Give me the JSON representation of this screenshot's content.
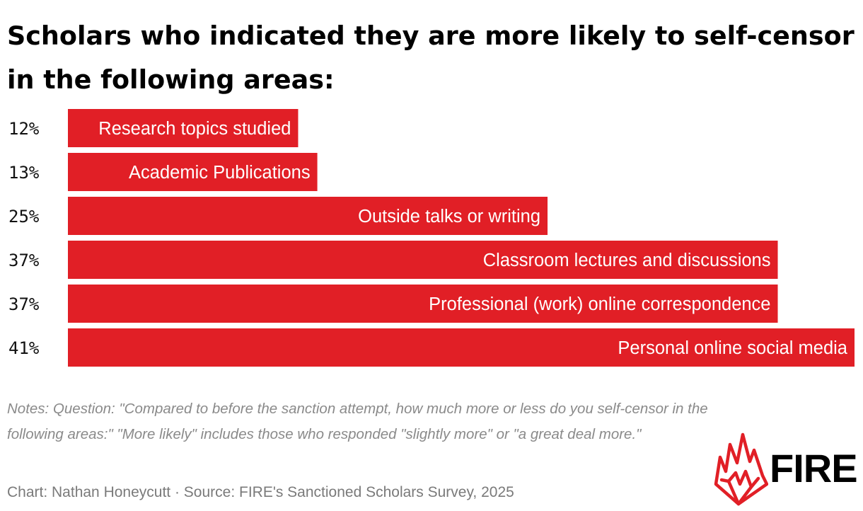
{
  "title": "Scholars who indicated they are more likely to self-censor in the following areas:",
  "chart_data": {
    "type": "bar",
    "orientation": "horizontal",
    "categories": [
      "Research topics studied",
      "Academic Publications",
      "Outside talks or writing",
      "Classroom lectures and discussions",
      "Professional (work) online correspondence",
      "Personal online social media"
    ],
    "values": [
      12,
      13,
      25,
      37,
      37,
      41
    ],
    "value_labels": [
      "12%",
      "13%",
      "25%",
      "37%",
      "37%",
      "41%"
    ],
    "unit": "%",
    "xlim": [
      0,
      41
    ],
    "xlabel": "",
    "ylabel": "",
    "grid": false,
    "legend": "none",
    "bar_color": "#e11f26",
    "label_color": "#ffffff"
  },
  "notes": "Notes: Question: \"Compared to before the sanction attempt, how much more or less do you self-censor in the following areas:\" \"More likely\" includes those who responded \"slightly more\" or \"a great deal more.\"",
  "credit": "Chart: Nathan Honeycutt · Source: FIRE's Sanctioned Scholars Survey, 2025",
  "logo": {
    "text": "FIRE",
    "icon": "flame-icon",
    "color": "#e11f26"
  }
}
